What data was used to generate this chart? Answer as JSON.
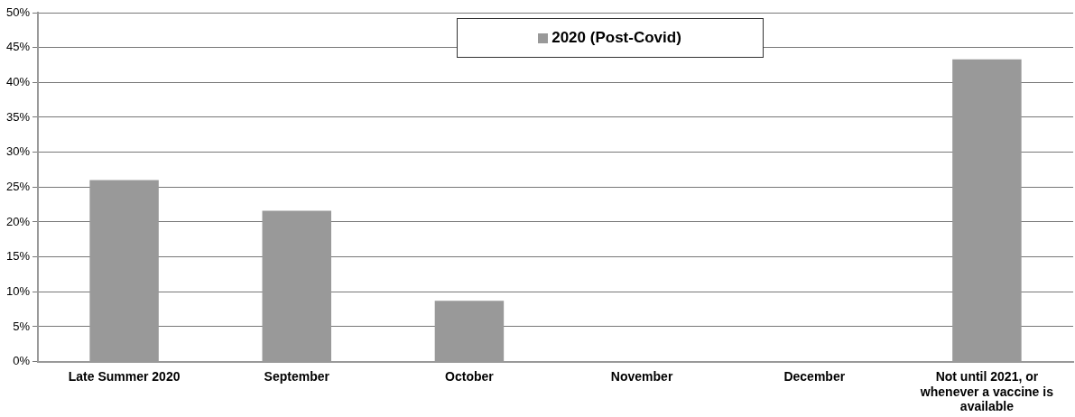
{
  "chart_data": {
    "type": "bar",
    "categories": [
      "Late Summer 2020",
      "September",
      "October",
      "November",
      "December",
      "Not until 2021, or whenever a vaccine is available"
    ],
    "series": [
      {
        "name": "2020 (Post-Covid)",
        "color": "#999999",
        "values": [
          26.0,
          21.6,
          8.7,
          0,
          0,
          43.3
        ]
      }
    ],
    "ylim": [
      0,
      50
    ],
    "yticks": [
      {
        "value": 0,
        "label": "0%"
      },
      {
        "value": 5,
        "label": "5%"
      },
      {
        "value": 10,
        "label": "10%"
      },
      {
        "value": 15,
        "label": "15%"
      },
      {
        "value": 20,
        "label": "20%"
      },
      {
        "value": 25,
        "label": "25%"
      },
      {
        "value": 30,
        "label": "30%"
      },
      {
        "value": 35,
        "label": "35%"
      },
      {
        "value": 40,
        "label": "40%"
      },
      {
        "value": 45,
        "label": "45%"
      },
      {
        "value": 50,
        "label": "50%"
      }
    ],
    "grid": "y",
    "legend": "top"
  }
}
